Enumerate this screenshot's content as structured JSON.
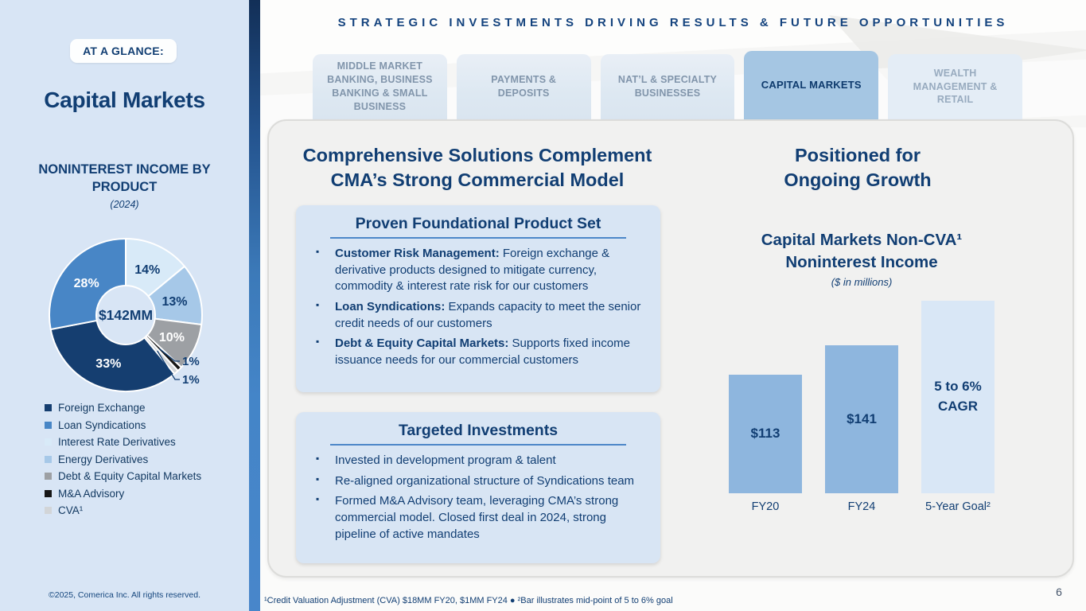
{
  "sidebar": {
    "badge": "AT A GLANCE:",
    "title": "Capital Markets",
    "section_title": "NONINTEREST INCOME BY PRODUCT",
    "section_subtitle": "(2024)",
    "copyright": "©2025, Comerica Inc. All rights reserved."
  },
  "header": {
    "title": "STRATEGIC INVESTMENTS DRIVING RESULTS & FUTURE OPPORTUNITIES"
  },
  "tabs": [
    {
      "label": "MIDDLE MARKET BANKING, BUSINESS BANKING & SMALL BUSINESS",
      "active": false,
      "dimmed": false
    },
    {
      "label": "PAYMENTS & DEPOSITS",
      "active": false,
      "dimmed": false
    },
    {
      "label": "NAT’L & SPECIALTY BUSINESSES",
      "active": false,
      "dimmed": false
    },
    {
      "label": "CAPITAL MARKETS",
      "active": true,
      "dimmed": false
    },
    {
      "label": "WEALTH MANAGEMENT & RETAIL",
      "active": false,
      "dimmed": true
    }
  ],
  "main": {
    "left": {
      "heading": "Comprehensive Solutions Complement CMA’s Strong Commercial Model",
      "boxes": [
        {
          "title": "Proven Foundational Product Set",
          "bullets": [
            {
              "lead": "Customer Risk Management:",
              "text": " Foreign exchange & derivative products designed to mitigate currency, commodity & interest rate risk for our customers"
            },
            {
              "lead": "Loan Syndications:",
              "text": " Expands capacity to meet the senior credit needs of our customers"
            },
            {
              "lead": "Debt & Equity Capital Markets:",
              "text": " Supports fixed income issuance needs for our commercial customers"
            }
          ]
        },
        {
          "title": "Targeted Investments",
          "bullets": [
            {
              "lead": "",
              "text": "Invested in development program & talent"
            },
            {
              "lead": "",
              "text": "Re-aligned organizational structure of Syndications team"
            },
            {
              "lead": "",
              "text": "Formed M&A Advisory team, leveraging CMA’s strong commercial model. Closed first deal in 2024, strong pipeline of active mandates"
            }
          ]
        }
      ]
    },
    "right": {
      "heading": "Positioned for Ongoing Growth"
    }
  },
  "footer": {
    "footnote": "¹Credit Valuation Adjustment (CVA) $18MM FY20, $1MM FY24 ● ²Bar illustrates mid-point of 5 to 6% goal",
    "page_number": "6"
  },
  "chart_data": [
    {
      "type": "pie",
      "title": "NONINTEREST INCOME BY PRODUCT (2024)",
      "center_label": "$142MM",
      "segments": [
        {
          "label": "Interest Rate Derivatives",
          "value": 14,
          "color": "#d8eaf8",
          "label_color": "#113e73"
        },
        {
          "label": "Energy Derivatives",
          "value": 13,
          "color": "#a6c8e8",
          "label_color": "#113e73"
        },
        {
          "label": "Debt & Equity Capital Markets",
          "value": 10,
          "color": "#9da0a4",
          "label_color": "#ffffff"
        },
        {
          "label": "M&A Advisory",
          "value": 1,
          "color": "#161616",
          "label_color": "#113e73"
        },
        {
          "label": "CVA¹",
          "value": 1,
          "color": "#d2d5d8",
          "label_color": "#113e73"
        },
        {
          "label": "Foreign Exchange",
          "value": 33,
          "color": "#153e70",
          "label_color": "#ffffff"
        },
        {
          "label": "Loan Syndications",
          "value": 28,
          "color": "#4886c6",
          "label_color": "#ffffff"
        }
      ],
      "legend": [
        {
          "label": "Foreign Exchange",
          "color": "#153e70"
        },
        {
          "label": "Loan Syndications",
          "color": "#4886c6"
        },
        {
          "label": "Interest Rate Derivatives",
          "color": "#d8eaf8"
        },
        {
          "label": "Energy Derivatives",
          "color": "#a6c8e8"
        },
        {
          "label": "Debt & Equity Capital Markets",
          "color": "#9da0a4"
        },
        {
          "label": "M&A Advisory",
          "color": "#161616"
        },
        {
          "label": "CVA¹",
          "color": "#d2d5d8"
        }
      ]
    },
    {
      "type": "bar",
      "title": "Capital Markets Non-CVA¹ Noninterest Income",
      "subtitle": "($ in millions)",
      "categories": [
        "FY20",
        "FY24",
        "5-Year Goal²"
      ],
      "values": [
        113,
        141,
        184
      ],
      "bar_labels": [
        "$113",
        "$141",
        "5 to 6% CAGR"
      ],
      "colors": [
        "#8eb6de",
        "#8eb6de",
        "#d9e7f6"
      ],
      "ylim": [
        0,
        190
      ],
      "grid": false,
      "legend_position": "none"
    }
  ]
}
